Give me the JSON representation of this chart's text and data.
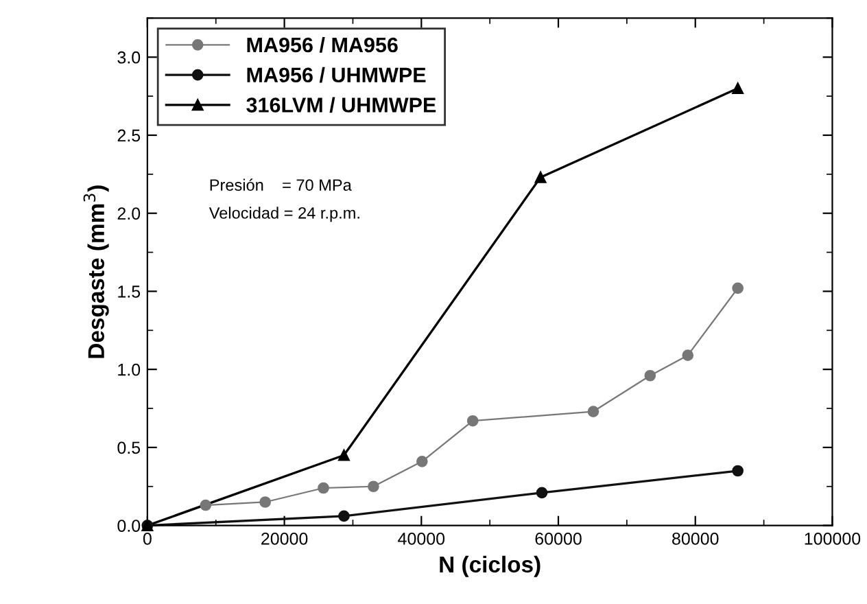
{
  "chart_data": {
    "type": "line",
    "xlabel": "N (ciclos)",
    "ylabel": "Desgaste (mm$^{3}$)",
    "xlim": [
      0,
      100000
    ],
    "xticks": [
      0,
      20000,
      40000,
      60000,
      80000,
      100000
    ],
    "ylim": [
      0,
      3.25
    ],
    "yticks": [
      {
        "value": 0,
        "label": "0.0"
      },
      {
        "value": 0.5,
        "label": "0.5"
      },
      {
        "value": 1,
        "label": "1.0"
      },
      {
        "value": 1.5,
        "label": "1.5"
      },
      {
        "value": 2,
        "label": "2.0"
      },
      {
        "value": 2.5,
        "label": "2.5"
      },
      {
        "value": 3,
        "label": "3.0"
      }
    ],
    "grid": false,
    "legend": "top left",
    "annotations": [
      "Presión    = 70 MPa",
      "Velocidad = 24 r.p.m."
    ],
    "series": [
      {
        "name": "MA956 / MA956",
        "color": "#777777",
        "marker": "circle",
        "x": [
          0,
          8500,
          17200,
          25700,
          33000,
          40100,
          47500,
          65100,
          73400,
          78900,
          86200
        ],
        "values": [
          0,
          0.13,
          0.15,
          0.24,
          0.25,
          0.41,
          0.67,
          0.73,
          0.96,
          1.09,
          1.52
        ]
      },
      {
        "name": "MA956 / UHMWPE",
        "color": "#111111",
        "marker": "circle",
        "x": [
          0,
          28700,
          57600,
          86200
        ],
        "values": [
          0,
          0.06,
          0.21,
          0.35
        ]
      },
      {
        "name": "316LVM / UHMWPE",
        "color": "#000000",
        "marker": "triangle",
        "x": [
          0,
          28700,
          57400,
          86200
        ],
        "values": [
          0,
          0.45,
          2.23,
          2.8
        ]
      }
    ]
  }
}
